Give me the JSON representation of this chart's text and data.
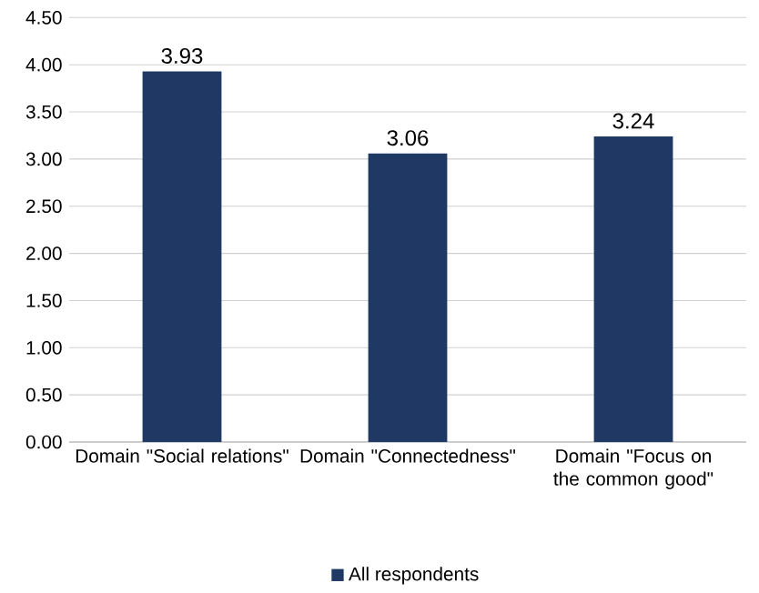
{
  "chart_data": {
    "type": "bar",
    "categories": [
      "Domain \"Social relations\"",
      "Domain \"Connectedness\"",
      "Domain \"Focus on the common good\""
    ],
    "series": [
      {
        "name": "All respondents",
        "color": "#203864",
        "values": [
          3.93,
          3.06,
          3.24
        ]
      }
    ],
    "ylim": [
      0,
      4.5
    ],
    "yticks": [
      {
        "value": 0,
        "label": "0.00"
      },
      {
        "value": 0.5,
        "label": "0.50"
      },
      {
        "value": 1,
        "label": "1.00"
      },
      {
        "value": 1.5,
        "label": "1.50"
      },
      {
        "value": 2,
        "label": "2.00"
      },
      {
        "value": 2.5,
        "label": "2.50"
      },
      {
        "value": 3,
        "label": "3.00"
      },
      {
        "value": 3.5,
        "label": "3.50"
      },
      {
        "value": 4,
        "label": "4.00"
      },
      {
        "value": 4.5,
        "label": "4.50"
      }
    ],
    "data_labels": true,
    "grid": "y",
    "legend": "bottom"
  }
}
